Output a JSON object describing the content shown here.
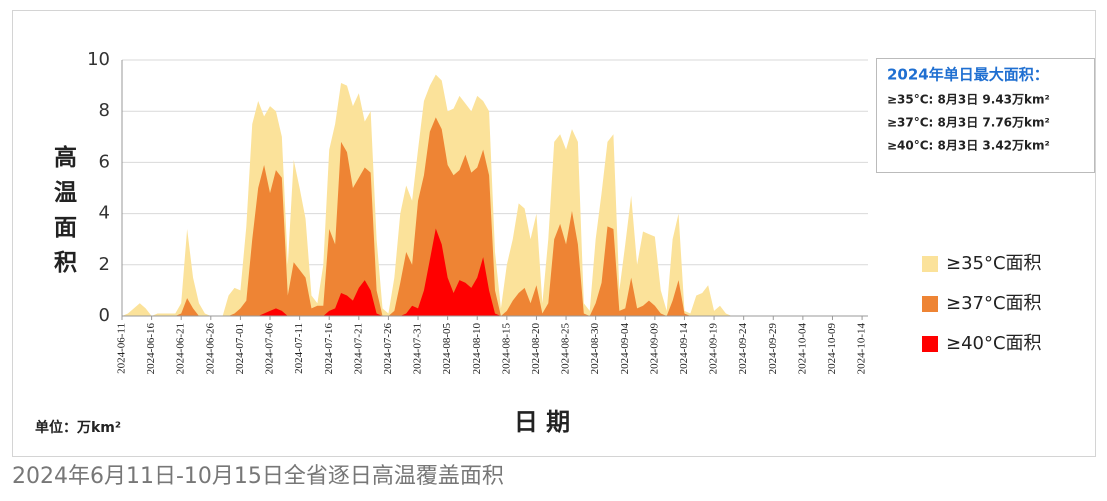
{
  "chart_data": {
    "type": "area",
    "ylabel": "高 温 面 积",
    "xlabel": "日 期",
    "unit": "单位：万km²",
    "caption": "2024年6月11日-10月15日全省逐日高温覆盖面积",
    "annotation_title": "2024年单日最大面积：",
    "annotations": [
      "≥35°C: 8月3日  9.43万km²",
      "≥37°C: 8月3日  7.76万km²",
      "≥40°C: 8月3日  3.42万km²"
    ],
    "ylim": [
      0,
      10
    ],
    "yticks": [
      0,
      2,
      4,
      6,
      8,
      10
    ],
    "grid": true,
    "legend_position": "right",
    "categories": [
      "2024-06-11",
      null,
      null,
      null,
      null,
      "2024-06-16",
      null,
      null,
      null,
      null,
      "2024-06-21",
      null,
      null,
      null,
      null,
      "2024-06-26",
      null,
      null,
      null,
      null,
      "2024-07-01",
      null,
      null,
      null,
      null,
      "2024-07-06",
      null,
      null,
      null,
      null,
      "2024-07-11",
      null,
      null,
      null,
      null,
      "2024-07-16",
      null,
      null,
      null,
      null,
      "2024-07-21",
      null,
      null,
      null,
      null,
      "2024-07-26",
      null,
      null,
      null,
      null,
      "2024-07-31",
      null,
      null,
      null,
      null,
      "2024-08-05",
      null,
      null,
      null,
      null,
      "2024-08-10",
      null,
      null,
      null,
      null,
      "2024-08-15",
      null,
      null,
      null,
      null,
      "2024-08-20",
      null,
      null,
      null,
      null,
      "2024-08-25",
      null,
      null,
      null,
      null,
      "2024-08-30",
      null,
      null,
      null,
      null,
      "2024-09-04",
      null,
      null,
      null,
      null,
      "2024-09-09",
      null,
      null,
      null,
      null,
      "2024-09-14",
      null,
      null,
      null,
      null,
      "2024-09-19",
      null,
      null,
      null,
      null,
      "2024-09-24",
      null,
      null,
      null,
      null,
      "2024-09-29",
      null,
      null,
      null,
      null,
      "2024-10-04",
      null,
      null,
      null,
      null,
      "2024-10-09",
      null,
      null,
      null,
      null,
      "2024-10-14",
      null
    ],
    "series": [
      {
        "name": "≥35°C面积",
        "color": "#fbe29a",
        "values": [
          0,
          0.1,
          0.3,
          0.5,
          0.3,
          0,
          0.1,
          0.1,
          0.1,
          0.1,
          0.5,
          3.4,
          1.5,
          0.5,
          0.1,
          0,
          0,
          0,
          0.8,
          1.1,
          1.0,
          3.5,
          7.5,
          8.4,
          7.8,
          8.2,
          8.0,
          7.0,
          2.0,
          6.1,
          5.0,
          3.8,
          0.8,
          0.5,
          2.0,
          6.5,
          7.5,
          9.1,
          9.0,
          8.2,
          8.7,
          7.6,
          8.0,
          3.0,
          0.3,
          0.1,
          1.5,
          4.0,
          5.1,
          4.5,
          6.5,
          8.4,
          9.0,
          9.43,
          9.2,
          8.0,
          8.1,
          8.6,
          8.3,
          8.0,
          8.6,
          8.4,
          8.0,
          2.5,
          0.3,
          2.0,
          3.0,
          4.4,
          4.2,
          3.0,
          4.0,
          0.5,
          3.0,
          6.8,
          7.1,
          6.5,
          7.3,
          6.8,
          0.5,
          0.2,
          3.0,
          4.8,
          6.8,
          7.1,
          1.0,
          2.8,
          4.7,
          2.0,
          3.3,
          3.2,
          3.1,
          1.0,
          0.2,
          3.0,
          4.0,
          0.2,
          0.1,
          0.8,
          0.9,
          1.2,
          0.2,
          0.4,
          0.1,
          0,
          0,
          0,
          0,
          0,
          0,
          0,
          0,
          0,
          0,
          0,
          0,
          0,
          0,
          0,
          0,
          0,
          0,
          0,
          0,
          0,
          0,
          0,
          0
        ]
      },
      {
        "name": "≥37°C面积",
        "color": "#ee8434",
        "values": [
          0,
          0,
          0,
          0,
          0,
          0,
          0,
          0,
          0,
          0,
          0.1,
          0.7,
          0.3,
          0,
          0,
          0,
          0,
          0,
          0,
          0.1,
          0.3,
          0.6,
          3.0,
          5.0,
          5.9,
          4.8,
          5.7,
          5.4,
          0.8,
          2.1,
          1.8,
          1.5,
          0.3,
          0.4,
          0.4,
          3.4,
          2.8,
          6.8,
          6.4,
          5.0,
          5.4,
          5.8,
          5.6,
          1.0,
          0,
          0,
          0.2,
          1.3,
          2.5,
          2.0,
          4.5,
          5.5,
          7.2,
          7.76,
          7.3,
          5.9,
          5.5,
          5.7,
          6.3,
          5.6,
          5.8,
          6.5,
          5.5,
          1.0,
          0,
          0.2,
          0.6,
          0.9,
          1.1,
          0.5,
          1.2,
          0.1,
          0.5,
          3.0,
          3.6,
          2.8,
          4.1,
          2.8,
          0.1,
          0,
          0.5,
          1.3,
          3.5,
          3.4,
          0.2,
          0.3,
          1.5,
          0.3,
          0.4,
          0.6,
          0.4,
          0.1,
          0,
          0.6,
          1.4,
          0.1,
          0,
          0,
          0,
          0,
          0,
          0,
          0,
          0,
          0,
          0,
          0,
          0,
          0,
          0,
          0,
          0,
          0,
          0,
          0,
          0,
          0,
          0,
          0,
          0,
          0,
          0,
          0,
          0,
          0,
          0,
          0
        ]
      },
      {
        "name": "≥40°C面积",
        "color": "#ff0000",
        "values": [
          0,
          0,
          0,
          0,
          0,
          0,
          0,
          0,
          0,
          0,
          0,
          0,
          0,
          0,
          0,
          0,
          0,
          0,
          0,
          0,
          0,
          0,
          0,
          0,
          0.1,
          0.2,
          0.3,
          0.2,
          0,
          0,
          0,
          0,
          0,
          0,
          0,
          0.2,
          0.3,
          0.9,
          0.8,
          0.6,
          1.1,
          1.4,
          1.0,
          0.1,
          0,
          0,
          0,
          0,
          0.1,
          0.4,
          0.3,
          1.0,
          2.2,
          3.42,
          2.8,
          1.5,
          0.9,
          1.4,
          1.3,
          1.1,
          1.5,
          2.3,
          1.0,
          0.1,
          0,
          0,
          0,
          0,
          0,
          0,
          0,
          0,
          0,
          0,
          0,
          0,
          0,
          0,
          0,
          0,
          0,
          0,
          0,
          0,
          0,
          0,
          0,
          0,
          0,
          0,
          0,
          0,
          0,
          0,
          0,
          0,
          0,
          0,
          0,
          0,
          0,
          0,
          0,
          0,
          0,
          0,
          0,
          0,
          0,
          0,
          0,
          0,
          0,
          0,
          0,
          0,
          0,
          0,
          0,
          0,
          0,
          0,
          0,
          0,
          0,
          0,
          0
        ]
      }
    ]
  }
}
